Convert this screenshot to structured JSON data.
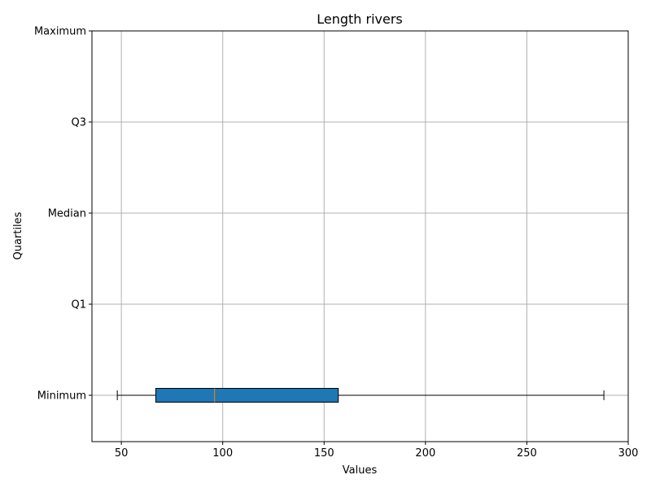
{
  "chart_data": {
    "type": "boxplot",
    "orientation": "horizontal",
    "title": "Length rivers",
    "xlabel": "Values",
    "ylabel": "Quartiles",
    "xlim": [
      35.5,
      300
    ],
    "x_ticks": [
      50,
      100,
      150,
      200,
      250,
      300
    ],
    "y_categories": [
      "Minimum",
      "Q1",
      "Median",
      "Q3",
      "Maximum"
    ],
    "grid": true,
    "box": {
      "category": "Minimum",
      "whisker_low": 48,
      "q1": 67,
      "median": 96,
      "q3": 157,
      "whisker_high": 288
    },
    "colors": {
      "box_fill": "#1f77b4",
      "median_line": "#ff7f0e",
      "grid": "#b0b0b0",
      "axis": "#000000"
    }
  }
}
